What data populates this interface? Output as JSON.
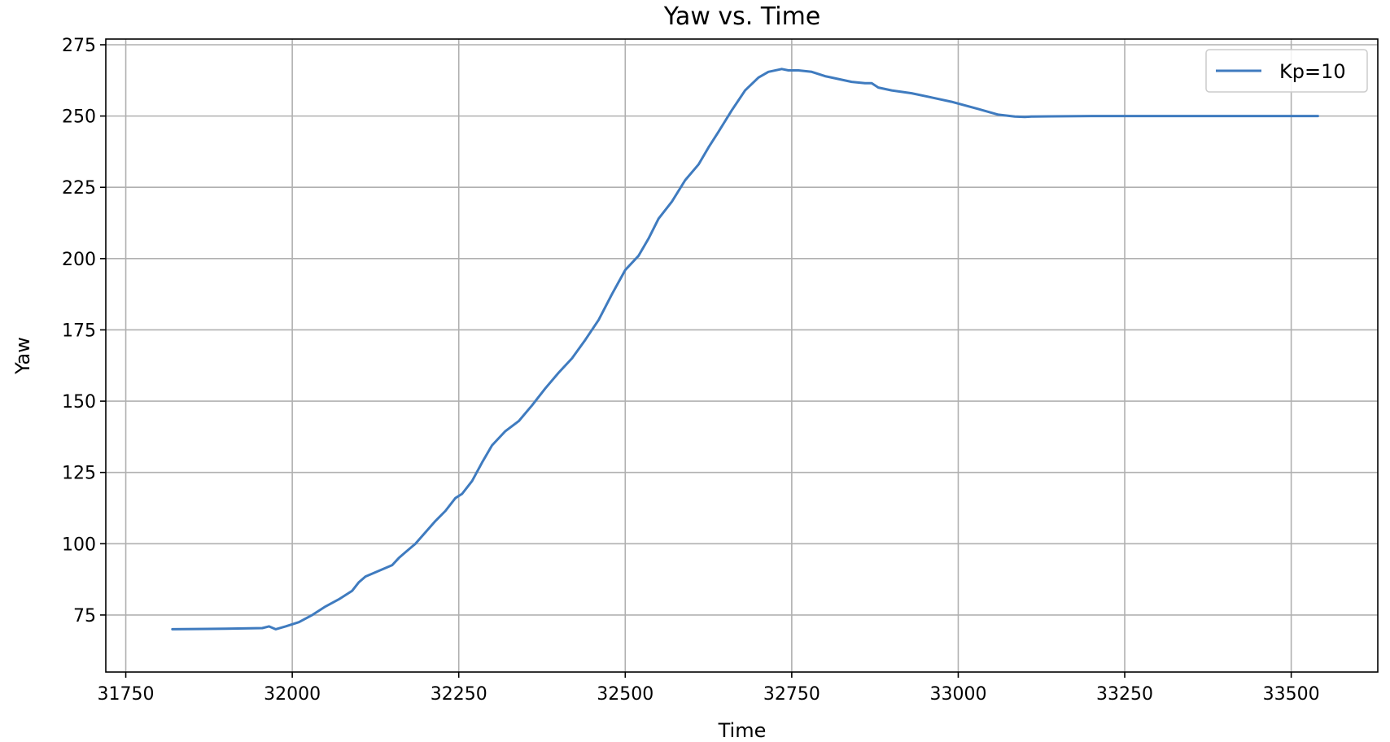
{
  "chart_data": {
    "type": "line",
    "title": "Yaw vs. Time",
    "xlabel": "Time",
    "ylabel": "Yaw",
    "xlim": [
      31720,
      33630
    ],
    "ylim": [
      55,
      277
    ],
    "xticks": [
      31750,
      32000,
      32250,
      32500,
      32750,
      33000,
      33250,
      33500
    ],
    "yticks": [
      75,
      100,
      125,
      150,
      175,
      200,
      225,
      250,
      275
    ],
    "xtick_labels": [
      "31750",
      "32000",
      "32250",
      "32500",
      "32750",
      "33000",
      "33250",
      "33500"
    ],
    "ytick_labels": [
      "75",
      "100",
      "125",
      "150",
      "175",
      "200",
      "225",
      "250",
      "275"
    ],
    "grid": true,
    "legend_position": "top-right",
    "series": [
      {
        "name": "Kp=10",
        "color": "#3f7bbf",
        "x": [
          31820,
          31900,
          31955,
          31965,
          31975,
          31990,
          32010,
          32030,
          32050,
          32070,
          32090,
          32100,
          32110,
          32130,
          32150,
          32160,
          32170,
          32185,
          32200,
          32215,
          32230,
          32245,
          32255,
          32270,
          32285,
          32300,
          32320,
          32340,
          32360,
          32380,
          32400,
          32420,
          32440,
          32460,
          32480,
          32500,
          32520,
          32535,
          32550,
          32570,
          32590,
          32610,
          32625,
          32640,
          32660,
          32680,
          32700,
          32715,
          32735,
          32745,
          32760,
          32780,
          32800,
          32820,
          32840,
          32860,
          32870,
          32880,
          32900,
          32930,
          32960,
          32990,
          33030,
          33060,
          33085,
          33100,
          33110,
          33140,
          33200,
          33300,
          33400,
          33540
        ],
        "y": [
          70,
          70.2,
          70.4,
          71,
          70,
          71,
          72.5,
          75,
          78,
          80.5,
          83.5,
          86.5,
          88.5,
          90.5,
          92.5,
          95,
          97,
          100,
          104,
          108,
          111.5,
          116,
          117.5,
          122,
          128.5,
          134.5,
          139.5,
          143,
          148.5,
          154.5,
          160,
          165,
          171.5,
          178.5,
          187.5,
          196,
          201,
          207,
          214,
          220,
          227.5,
          233,
          239,
          244.5,
          252,
          259,
          263.5,
          265.5,
          266.5,
          266,
          266,
          265.5,
          264,
          263,
          262,
          261.5,
          261.5,
          260,
          259,
          258,
          256.5,
          255,
          252.5,
          250.5,
          249.8,
          249.7,
          249.8,
          249.9,
          250,
          250,
          250,
          250
        ]
      }
    ]
  }
}
